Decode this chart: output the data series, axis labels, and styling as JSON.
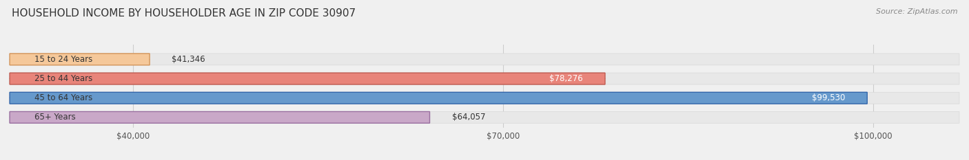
{
  "title": "HOUSEHOLD INCOME BY HOUSEHOLDER AGE IN ZIP CODE 30907",
  "source": "Source: ZipAtlas.com",
  "categories": [
    "15 to 24 Years",
    "25 to 44 Years",
    "45 to 64 Years",
    "65+ Years"
  ],
  "values": [
    41346,
    78276,
    99530,
    64057
  ],
  "bar_colors": [
    "#f5c89a",
    "#e8847a",
    "#6699cc",
    "#c9a8c8"
  ],
  "bar_edge_colors": [
    "#d4955a",
    "#c05a50",
    "#3366aa",
    "#9a6fa0"
  ],
  "label_colors": [
    "#333333",
    "#ffffff",
    "#ffffff",
    "#333333"
  ],
  "value_label_inside": [
    false,
    true,
    true,
    false
  ],
  "x_min": 30000,
  "x_max": 107000,
  "tick_values": [
    40000,
    70000,
    100000
  ],
  "tick_labels": [
    "$40,000",
    "$70,000",
    "$100,000"
  ],
  "value_labels": [
    "$41,346",
    "$78,276",
    "$99,530",
    "$64,057"
  ],
  "background_color": "#f0f0f0",
  "bar_bg_color": "#e8e8e8",
  "bar_bg_edge_color": "#d8d8d8",
  "title_fontsize": 11,
  "source_fontsize": 8,
  "label_fontsize": 8.5,
  "value_fontsize": 8.5,
  "tick_fontsize": 8.5
}
